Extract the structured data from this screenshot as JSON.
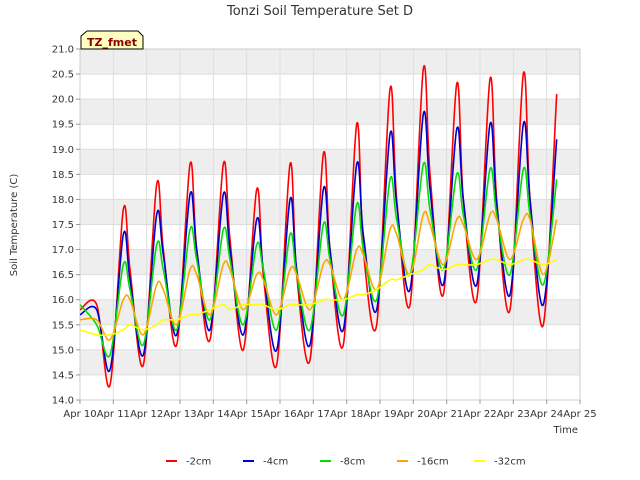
{
  "chart_data": {
    "type": "line",
    "title": "Tonzi Soil Temperature Set D",
    "xlabel": "Time",
    "ylabel": "Soil Temperature (C)",
    "site_tag": "TZ_fmet",
    "ylim": [
      14.0,
      21.0
    ],
    "xlim": [
      "Apr 10",
      "Apr 25"
    ],
    "yticks": [
      14.0,
      14.5,
      15.0,
      15.5,
      16.0,
      16.5,
      17.0,
      17.5,
      18.0,
      18.5,
      19.0,
      19.5,
      20.0,
      20.5,
      21.0
    ],
    "xticks": [
      "Apr 10",
      "Apr 11",
      "Apr 12",
      "Apr 13",
      "Apr 14",
      "Apr 15",
      "Apr 16",
      "Apr 17",
      "Apr 18",
      "Apr 19",
      "Apr 20",
      "Apr 21",
      "Apr 22",
      "Apr 23",
      "Apr 24",
      "Apr 25"
    ],
    "grid": true,
    "legend_position": "bottom",
    "x": [
      10.0,
      10.5,
      10.9,
      11.3,
      11.5,
      11.9,
      12.3,
      12.5,
      12.9,
      13.3,
      13.5,
      13.9,
      14.3,
      14.5,
      14.9,
      15.3,
      15.5,
      15.9,
      16.3,
      16.5,
      16.9,
      17.3,
      17.5,
      17.9,
      18.3,
      18.5,
      18.9,
      19.3,
      19.5,
      19.9,
      20.3,
      20.5,
      20.9,
      21.3,
      21.5,
      21.9,
      22.3,
      22.5,
      22.9,
      23.3,
      23.5,
      23.9,
      24.3
    ],
    "series": [
      {
        "name": "-2cm",
        "color": "#ff0000",
        "values": [
          15.8,
          15.9,
          14.3,
          17.8,
          16.6,
          14.7,
          18.3,
          17.0,
          15.1,
          18.7,
          17.0,
          15.2,
          18.7,
          17.2,
          15.0,
          18.2,
          16.5,
          14.7,
          18.7,
          16.5,
          14.8,
          18.9,
          17.0,
          15.1,
          19.5,
          17.0,
          15.5,
          20.2,
          18.0,
          15.9,
          20.6,
          18.5,
          16.1,
          20.3,
          18.0,
          16.0,
          20.4,
          18.0,
          15.8,
          20.5,
          18.0,
          15.5,
          20.1
        ]
      },
      {
        "name": "-4cm",
        "color": "#0000cc",
        "values": [
          15.7,
          15.8,
          14.6,
          17.3,
          16.4,
          14.9,
          17.7,
          16.9,
          15.3,
          18.1,
          17.0,
          15.4,
          18.1,
          17.0,
          15.3,
          17.6,
          16.6,
          15.0,
          18.0,
          16.6,
          15.1,
          18.2,
          17.0,
          15.4,
          18.7,
          17.3,
          15.8,
          19.3,
          17.9,
          16.2,
          19.7,
          18.2,
          16.3,
          19.4,
          18.0,
          16.3,
          19.5,
          17.9,
          16.1,
          19.5,
          18.0,
          15.9,
          19.2
        ]
      },
      {
        "name": "-8cm",
        "color": "#00dd00",
        "values": [
          15.9,
          15.5,
          14.9,
          16.7,
          16.2,
          15.1,
          17.1,
          16.6,
          15.4,
          17.4,
          16.8,
          15.6,
          17.4,
          16.8,
          15.5,
          17.1,
          16.6,
          15.4,
          17.3,
          16.5,
          15.4,
          17.5,
          16.8,
          15.7,
          17.9,
          17.0,
          16.0,
          18.4,
          17.6,
          16.5,
          18.7,
          17.8,
          16.6,
          18.5,
          17.7,
          16.6,
          18.6,
          17.7,
          16.5,
          18.6,
          17.7,
          16.3,
          18.4
        ]
      },
      {
        "name": "-16cm",
        "color": "#ffa500",
        "values": [
          15.6,
          15.6,
          15.2,
          16.0,
          16.0,
          15.3,
          16.3,
          16.2,
          15.5,
          16.6,
          16.5,
          15.7,
          16.7,
          16.6,
          15.8,
          16.5,
          16.4,
          15.7,
          16.6,
          16.5,
          15.8,
          16.7,
          16.7,
          16.0,
          17.0,
          16.9,
          16.2,
          17.4,
          17.3,
          16.5,
          17.7,
          17.5,
          16.7,
          17.6,
          17.5,
          16.8,
          17.7,
          17.6,
          16.8,
          17.6,
          17.6,
          16.5,
          17.6
        ]
      },
      {
        "name": "-32cm",
        "color": "#ffff00",
        "values": [
          15.4,
          15.3,
          15.3,
          15.4,
          15.5,
          15.4,
          15.5,
          15.6,
          15.6,
          15.7,
          15.7,
          15.8,
          15.9,
          15.8,
          15.9,
          15.9,
          15.9,
          15.8,
          15.9,
          15.9,
          15.9,
          16.0,
          16.0,
          16.0,
          16.1,
          16.1,
          16.2,
          16.4,
          16.4,
          16.5,
          16.6,
          16.7,
          16.6,
          16.7,
          16.7,
          16.7,
          16.8,
          16.8,
          16.7,
          16.8,
          16.8,
          16.7,
          16.8
        ]
      }
    ]
  }
}
